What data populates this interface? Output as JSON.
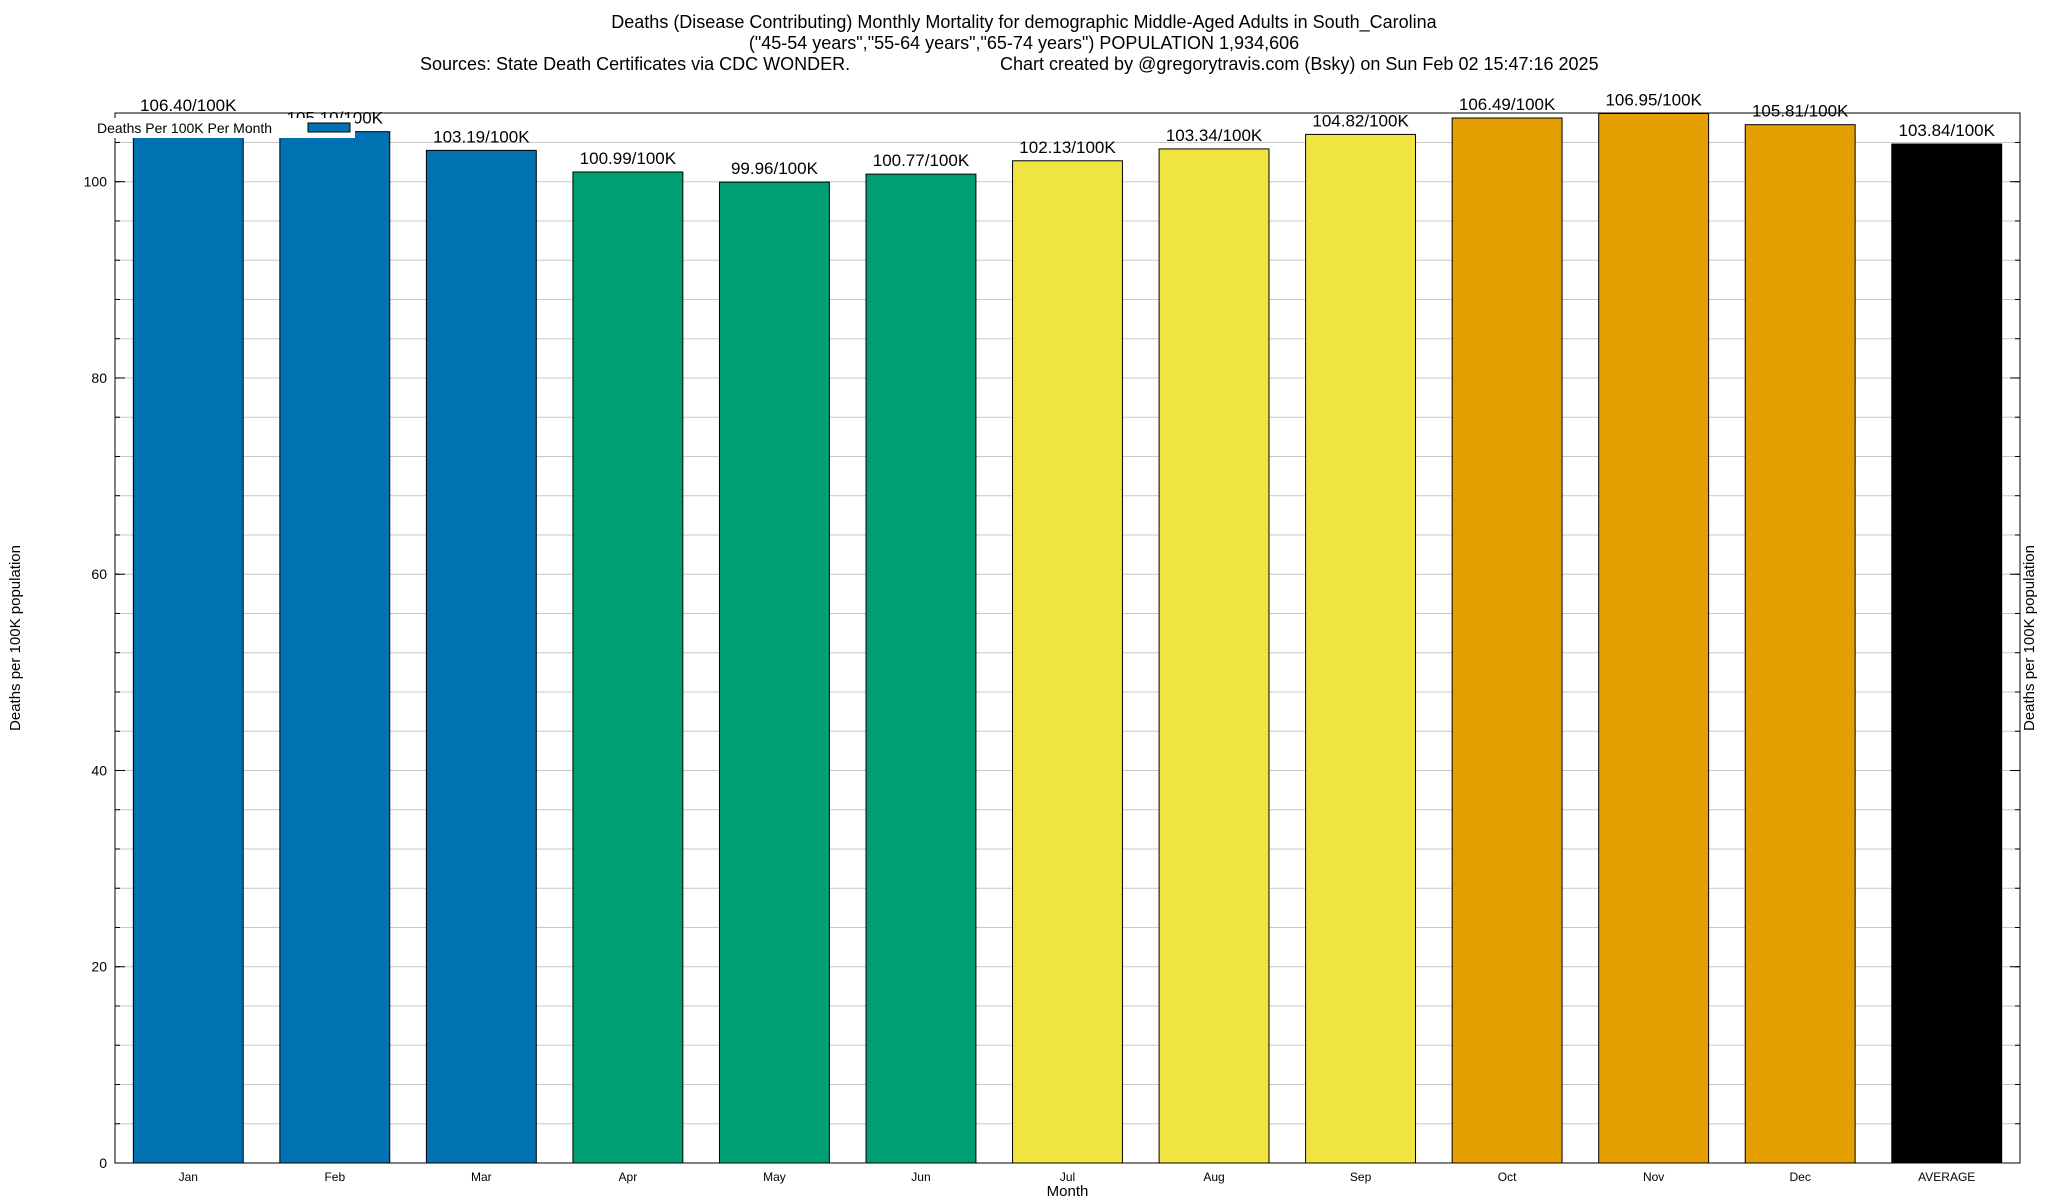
{
  "header": {
    "title_line1": "Deaths (Disease Contributing) Monthly Mortality for demographic Middle-Aged Adults in South_Carolina",
    "title_line2": "(\"45-54 years\",\"55-64 years\",\"65-74 years\") POPULATION 1,934,606",
    "sources": "Sources: State Death Certificates via CDC WONDER.",
    "credit": "Chart created by @gregorytravis.com (Bsky) on Sun Feb 02 15:47:16 2025"
  },
  "chart_data": {
    "type": "bar",
    "categories": [
      "Jan",
      "Feb",
      "Mar",
      "Apr",
      "May",
      "Jun",
      "Jul",
      "Aug",
      "Sep",
      "Oct",
      "Nov",
      "Dec",
      "AVERAGE"
    ],
    "values": [
      106.4,
      105.1,
      103.19,
      100.99,
      99.96,
      100.77,
      102.13,
      103.34,
      104.82,
      106.49,
      106.95,
      105.81,
      103.84
    ],
    "value_labels": [
      "106.40/100K",
      "105.10/100K",
      "103.19/100K",
      "100.99/100K",
      "99.96/100K",
      "100.77/100K",
      "102.13/100K",
      "103.34/100K",
      "104.82/100K",
      "106.49/100K",
      "106.95/100K",
      "105.81/100K",
      "103.84/100K"
    ],
    "colors": [
      "#0072b2",
      "#0072b2",
      "#0072b2",
      "#009e73",
      "#009e73",
      "#009e73",
      "#f0e442",
      "#f0e442",
      "#f0e442",
      "#e69f00",
      "#e69f00",
      "#e69f00",
      "#000000"
    ],
    "xlabel": "Month",
    "ylabel": "Deaths per 100K population",
    "ylabel_right": "Deaths per 100K population",
    "ylim": [
      0,
      107
    ],
    "yticks": [
      0,
      20,
      40,
      60,
      80,
      100
    ],
    "ytick_labels": [
      "0",
      "20",
      "40",
      "60",
      "80",
      "100"
    ],
    "minor_tick_step": 4,
    "grid": true,
    "legend": {
      "label": "Deaths Per 100K Per Month",
      "color": "#0072b2",
      "position": "top-left"
    }
  }
}
